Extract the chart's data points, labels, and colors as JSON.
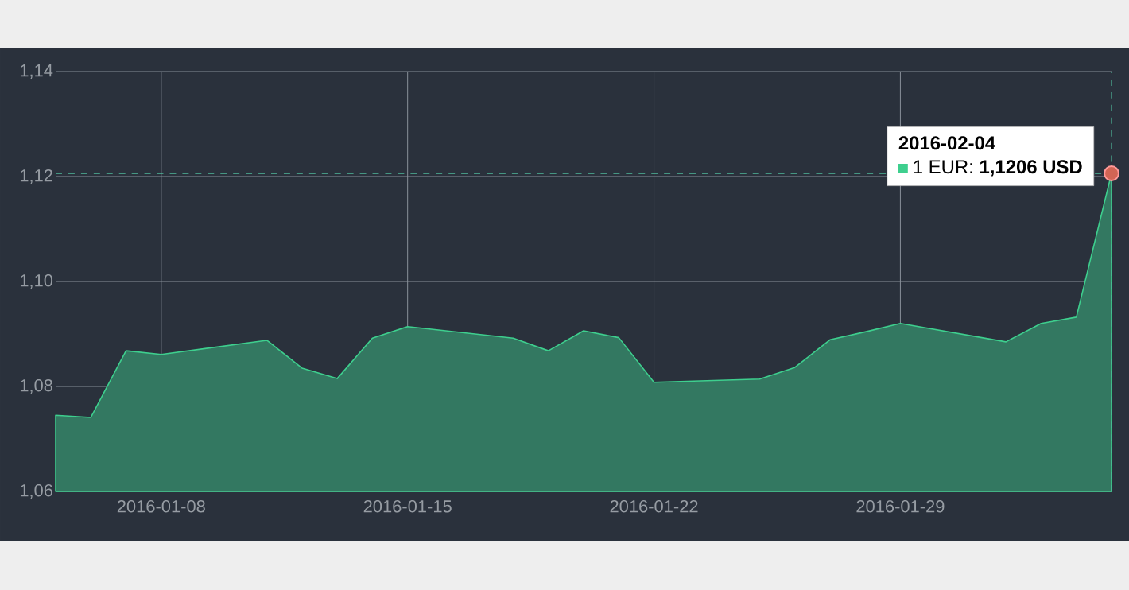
{
  "chart_data": {
    "type": "area",
    "x": [
      "2016-01-05",
      "2016-01-06",
      "2016-01-07",
      "2016-01-08",
      "2016-01-11",
      "2016-01-12",
      "2016-01-13",
      "2016-01-14",
      "2016-01-15",
      "2016-01-18",
      "2016-01-19",
      "2016-01-20",
      "2016-01-21",
      "2016-01-22",
      "2016-01-25",
      "2016-01-26",
      "2016-01-27",
      "2016-01-28",
      "2016-01-29",
      "2016-02-01",
      "2016-02-02",
      "2016-02-03",
      "2016-02-04"
    ],
    "series": [
      {
        "color": "#3ecf8e",
        "values": [
          1.0745,
          1.0741,
          1.0868,
          1.0861,
          1.0888,
          1.0835,
          1.0815,
          1.0892,
          1.0914,
          1.0892,
          1.0868,
          1.0906,
          1.0893,
          1.0808,
          1.0814,
          1.0836,
          1.0889,
          1.0904,
          1.092,
          1.0885,
          1.092,
          1.0932,
          1.1206
        ]
      }
    ],
    "xlim": [
      "2016-01-05",
      "2016-02-04"
    ],
    "xticks": [
      "2016-01-08",
      "2016-01-15",
      "2016-01-22",
      "2016-01-29"
    ],
    "ylim": [
      1.06,
      1.14
    ],
    "yticks": [
      {
        "value": 1.06,
        "label": "1,06"
      },
      {
        "value": 1.08,
        "label": "1,08"
      },
      {
        "value": 1.1,
        "label": "1,10"
      },
      {
        "value": 1.12,
        "label": "1,12"
      },
      {
        "value": 1.14,
        "label": "1,14"
      }
    ],
    "grid": true,
    "ref_lines": [
      {
        "axis": "y",
        "value": 1.1206,
        "color": "#4fb99a",
        "line_style": "dashed"
      },
      {
        "axis": "x",
        "value": "2016-02-04",
        "color": "#4fb99a",
        "line_style": "dashed"
      }
    ],
    "annotations": [
      "**2016-02-04**",
      "1 EUR: **1,1206 USD**"
    ]
  }
}
